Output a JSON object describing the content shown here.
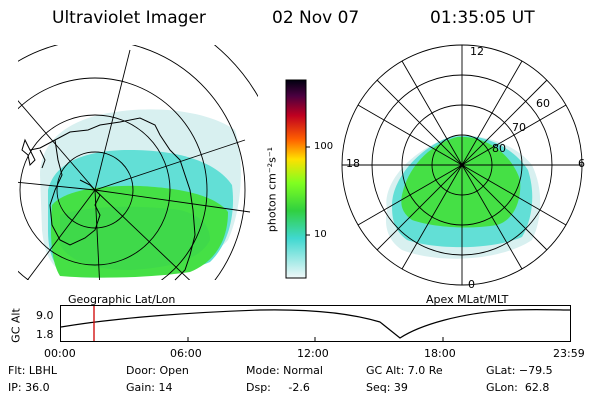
{
  "header": {
    "instrument": "Ultraviolet Imager",
    "date": "02 Nov 07",
    "time": "01:35:05 UT"
  },
  "colorbar": {
    "unit_label": "photon cm⁻²s⁻¹",
    "tick_100": "100",
    "tick_10": "10"
  },
  "left_panel": {
    "caption": "Geographic Lat/Lon"
  },
  "right_panel": {
    "caption": "Apex MLat/MLT",
    "mlt_top": "12",
    "mlt_bottom": "0",
    "mlt_left": "18",
    "mlt_right": "6",
    "lat_60": "60",
    "lat_70": "70",
    "lat_80": "80"
  },
  "alt_plot": {
    "ylabel": "GC Alt",
    "y_top": "9.0",
    "y_bottom": "1.8",
    "x_ticks": [
      "00:00",
      "06:00",
      "12:00",
      "18:00",
      "23:59"
    ]
  },
  "footer": {
    "row1": {
      "flt": "Flt: LBHL",
      "door": "Door: Open",
      "mode": "Mode: Normal",
      "gc_alt": "GC Alt: 7.0 Re",
      "glat": "GLat: −79.5"
    },
    "row2": {
      "ip": "IP: 36.0",
      "gain": "Gain: 14",
      "dsp": "Dsp:     -2.6",
      "seq": "Seq: 39",
      "glon": "GLon:  62.8"
    }
  },
  "colors": {
    "aurora_green": "#45e045",
    "aurora_cyan": "#5fe0d8",
    "aurora_pale": "#d8f0f0"
  }
}
